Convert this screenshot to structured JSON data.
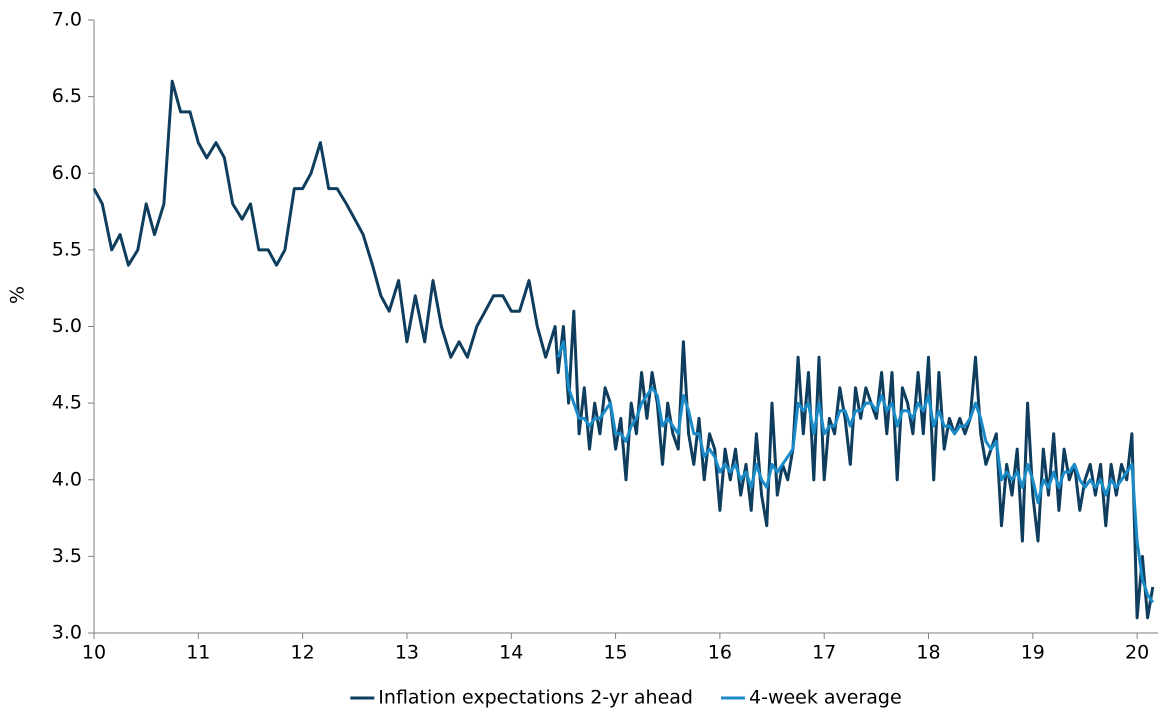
{
  "chart_data": {
    "type": "line",
    "y_label": "%",
    "x": [
      10,
      10.08,
      10.17,
      10.25,
      10.33,
      10.42,
      10.5,
      10.58,
      10.67,
      10.75,
      10.83,
      10.92,
      11,
      11.08,
      11.17,
      11.25,
      11.33,
      11.42,
      11.5,
      11.58,
      11.67,
      11.75,
      11.83,
      11.92,
      12,
      12.08,
      12.17,
      12.25,
      12.33,
      12.42,
      12.5,
      12.58,
      12.67,
      12.75,
      12.83,
      12.92,
      13,
      13.08,
      13.17,
      13.25,
      13.33,
      13.42,
      13.5,
      13.58,
      13.67,
      13.75,
      13.83,
      13.92,
      14,
      14.08,
      14.17,
      14.25,
      14.33,
      14.42,
      14.45,
      14.5,
      14.55,
      14.6,
      14.65,
      14.7,
      14.75,
      14.8,
      14.85,
      14.9,
      14.95,
      15,
      15.05,
      15.1,
      15.15,
      15.2,
      15.25,
      15.3,
      15.35,
      15.4,
      15.45,
      15.5,
      15.55,
      15.6,
      15.65,
      15.7,
      15.75,
      15.8,
      15.85,
      15.9,
      15.95,
      16,
      16.05,
      16.1,
      16.15,
      16.2,
      16.25,
      16.3,
      16.35,
      16.4,
      16.45,
      16.5,
      16.55,
      16.6,
      16.65,
      16.7,
      16.75,
      16.8,
      16.85,
      16.9,
      16.95,
      17,
      17.05,
      17.1,
      17.15,
      17.2,
      17.25,
      17.3,
      17.35,
      17.4,
      17.45,
      17.5,
      17.55,
      17.6,
      17.65,
      17.7,
      17.75,
      17.8,
      17.85,
      17.9,
      17.95,
      18,
      18.05,
      18.1,
      18.15,
      18.2,
      18.25,
      18.3,
      18.35,
      18.4,
      18.45,
      18.5,
      18.55,
      18.6,
      18.65,
      18.7,
      18.75,
      18.8,
      18.85,
      18.9,
      18.95,
      19,
      19.05,
      19.1,
      19.15,
      19.2,
      19.25,
      19.3,
      19.35,
      19.4,
      19.45,
      19.5,
      19.55,
      19.6,
      19.65,
      19.7,
      19.75,
      19.8,
      19.85,
      19.9,
      19.95,
      20,
      20.05,
      20.1,
      20.15
    ],
    "series": [
      {
        "name": "Inflation expectations 2-yr ahead",
        "color": "#0f3d5e",
        "values": [
          5.9,
          5.8,
          5.5,
          5.6,
          5.4,
          5.5,
          5.8,
          5.6,
          5.8,
          6.6,
          6.4,
          6.4,
          6.2,
          6.1,
          6.2,
          6.1,
          5.8,
          5.7,
          5.8,
          5.5,
          5.5,
          5.4,
          5.5,
          5.9,
          5.9,
          6.0,
          6.2,
          5.9,
          5.9,
          5.8,
          5.7,
          5.6,
          5.4,
          5.2,
          5.1,
          5.3,
          4.9,
          5.2,
          4.9,
          5.3,
          5.0,
          4.8,
          4.9,
          4.8,
          5.0,
          5.1,
          5.2,
          5.2,
          5.1,
          5.1,
          5.3,
          5.0,
          4.8,
          5.0,
          4.7,
          5.0,
          4.5,
          5.1,
          4.3,
          4.6,
          4.2,
          4.5,
          4.3,
          4.6,
          4.5,
          4.2,
          4.4,
          4.0,
          4.5,
          4.3,
          4.7,
          4.4,
          4.7,
          4.5,
          4.1,
          4.5,
          4.3,
          4.2,
          4.9,
          4.3,
          4.1,
          4.4,
          4.0,
          4.3,
          4.2,
          3.8,
          4.2,
          4.0,
          4.2,
          3.9,
          4.1,
          3.8,
          4.3,
          3.9,
          3.7,
          4.5,
          3.9,
          4.1,
          4.0,
          4.2,
          4.8,
          4.3,
          4.7,
          4.0,
          4.8,
          4.0,
          4.4,
          4.3,
          4.6,
          4.4,
          4.1,
          4.6,
          4.4,
          4.6,
          4.5,
          4.4,
          4.7,
          4.3,
          4.7,
          4.0,
          4.6,
          4.5,
          4.3,
          4.7,
          4.3,
          4.8,
          4.0,
          4.7,
          4.2,
          4.4,
          4.3,
          4.4,
          4.3,
          4.4,
          4.8,
          4.3,
          4.1,
          4.2,
          4.3,
          3.7,
          4.1,
          3.9,
          4.2,
          3.6,
          4.5,
          3.9,
          3.6,
          4.2,
          3.9,
          4.3,
          3.8,
          4.2,
          4.0,
          4.1,
          3.8,
          4.0,
          4.1,
          3.9,
          4.1,
          3.7,
          4.1,
          3.9,
          4.1,
          4.0,
          4.3,
          3.1,
          3.5,
          3.1,
          3.3
        ]
      },
      {
        "name": "4-week average",
        "color": "#1b8bc7",
        "values": [
          null,
          null,
          null,
          null,
          null,
          null,
          null,
          null,
          null,
          null,
          null,
          null,
          null,
          null,
          null,
          null,
          null,
          null,
          null,
          null,
          null,
          null,
          null,
          null,
          null,
          null,
          null,
          null,
          null,
          null,
          null,
          null,
          null,
          null,
          null,
          null,
          null,
          null,
          null,
          null,
          null,
          null,
          null,
          null,
          null,
          null,
          null,
          null,
          null,
          null,
          null,
          null,
          null,
          null,
          4.8,
          4.9,
          4.6,
          4.5,
          4.4,
          4.4,
          4.35,
          4.4,
          4.4,
          4.45,
          4.5,
          4.3,
          4.3,
          4.25,
          4.35,
          4.4,
          4.5,
          4.55,
          4.6,
          4.55,
          4.35,
          4.4,
          4.35,
          4.3,
          4.55,
          4.45,
          4.3,
          4.3,
          4.15,
          4.2,
          4.15,
          4.05,
          4.1,
          4.05,
          4.1,
          4.0,
          4.05,
          3.95,
          4.1,
          4.0,
          3.95,
          4.1,
          4.05,
          4.1,
          4.15,
          4.2,
          4.5,
          4.45,
          4.5,
          4.3,
          4.5,
          4.3,
          4.35,
          4.35,
          4.45,
          4.45,
          4.35,
          4.45,
          4.45,
          4.5,
          4.5,
          4.45,
          4.55,
          4.45,
          4.5,
          4.35,
          4.45,
          4.45,
          4.4,
          4.5,
          4.45,
          4.55,
          4.35,
          4.45,
          4.35,
          4.35,
          4.3,
          4.35,
          4.35,
          4.4,
          4.5,
          4.4,
          4.25,
          4.2,
          4.25,
          4.0,
          4.05,
          4.0,
          4.05,
          3.95,
          4.1,
          4.0,
          3.85,
          4.0,
          3.95,
          4.05,
          3.95,
          4.05,
          4.05,
          4.1,
          4.0,
          3.95,
          4.0,
          3.95,
          4.0,
          3.9,
          4.0,
          3.95,
          4.0,
          4.05,
          4.1,
          3.6,
          3.35,
          3.25,
          3.2
        ]
      }
    ],
    "xlim": [
      10,
      20.2
    ],
    "xticks": [
      10,
      11,
      12,
      13,
      14,
      15,
      16,
      17,
      18,
      19,
      20
    ],
    "ylim": [
      3.0,
      7.0
    ],
    "yticks": [
      {
        "value": 3.0,
        "label": "3.0"
      },
      {
        "value": 3.5,
        "label": "3.5"
      },
      {
        "value": 4.0,
        "label": "4.0"
      },
      {
        "value": 4.5,
        "label": "4.5"
      },
      {
        "value": 5.0,
        "label": "5.0"
      },
      {
        "value": 5.5,
        "label": "5.5"
      },
      {
        "value": 6.0,
        "label": "6.0"
      },
      {
        "value": 6.5,
        "label": "6.5"
      },
      {
        "value": 7.0,
        "label": "7.0"
      }
    ],
    "grid": false,
    "legend": "bottom"
  }
}
